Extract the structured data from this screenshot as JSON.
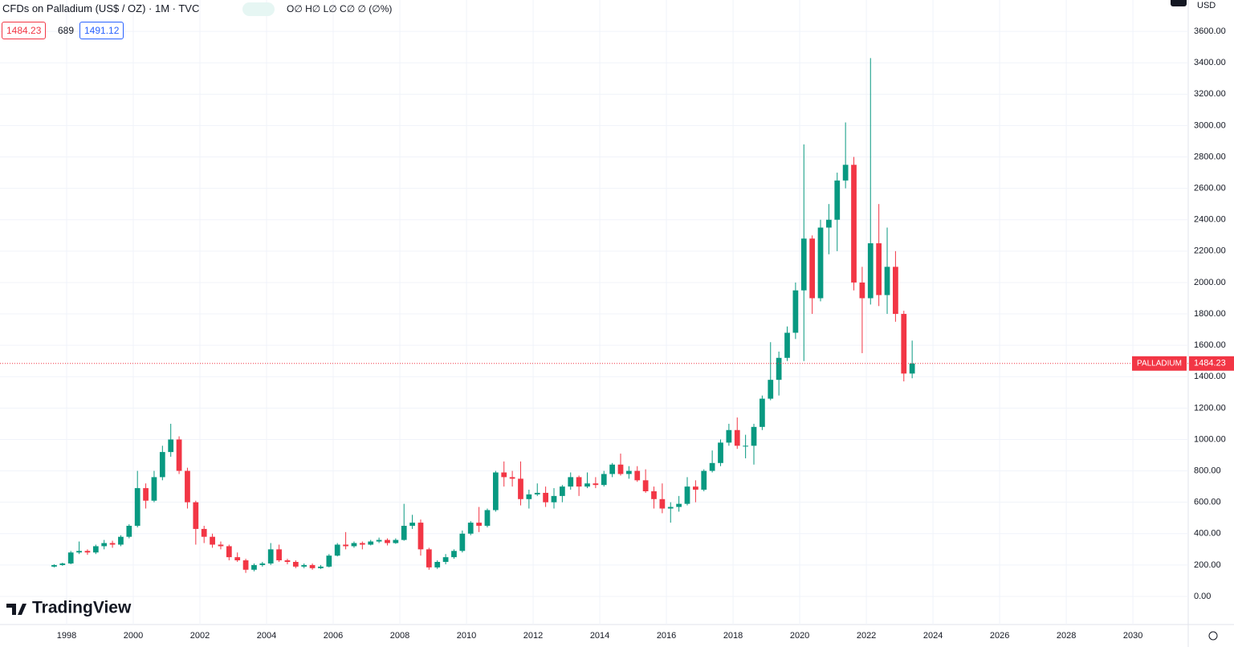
{
  "header": {
    "title": "CFDs on Palladium (US$ / OZ) · 1M · TVC",
    "ohlc": "O∅ H∅ L∅ C∅ ∅ (∅%)",
    "sell": "1484.23",
    "spread": "689",
    "buy": "1491.12",
    "currency": "USD",
    "brand": "TradingView"
  },
  "chart_data": {
    "type": "candlestick",
    "xlim": [
      1996,
      2031.66
    ],
    "xticks": [
      1998,
      2000,
      2002,
      2004,
      2006,
      2008,
      2010,
      2012,
      2014,
      2016,
      2018,
      2020,
      2022,
      2024,
      2026,
      2028,
      2030
    ],
    "ylim": [
      -179,
      3800
    ],
    "yticks": [
      {
        "value": 0,
        "label": "0.00"
      },
      {
        "value": 200,
        "label": "200.00"
      },
      {
        "value": 400,
        "label": "400.00"
      },
      {
        "value": 600,
        "label": "600.00"
      },
      {
        "value": 800,
        "label": "800.00"
      },
      {
        "value": 1000,
        "label": "1000.00"
      },
      {
        "value": 1200,
        "label": "1200.00"
      },
      {
        "value": 1400,
        "label": "1400.00"
      },
      {
        "value": 1600,
        "label": "1600.00"
      },
      {
        "value": 1800,
        "label": "1800.00"
      },
      {
        "value": 2000,
        "label": "2000.00"
      },
      {
        "value": 2200,
        "label": "2200.00"
      },
      {
        "value": 2400,
        "label": "2400.00"
      },
      {
        "value": 2600,
        "label": "2600.00"
      },
      {
        "value": 2800,
        "label": "2800.00"
      },
      {
        "value": 3000,
        "label": "3000.00"
      },
      {
        "value": 3200,
        "label": "3200.00"
      },
      {
        "value": 3400,
        "label": "3400.00"
      },
      {
        "value": 3600,
        "label": "3600.00"
      }
    ],
    "grid": true,
    "x": [
      1997.625,
      1997.875,
      1998.125,
      1998.375,
      1998.625,
      1998.875,
      1999.125,
      1999.375,
      1999.625,
      1999.875,
      2000.125,
      2000.375,
      2000.625,
      2000.875,
      2001.125,
      2001.375,
      2001.625,
      2001.875,
      2002.125,
      2002.375,
      2002.625,
      2002.875,
      2003.125,
      2003.375,
      2003.625,
      2003.875,
      2004.125,
      2004.375,
      2004.625,
      2004.875,
      2005.125,
      2005.375,
      2005.625,
      2005.875,
      2006.125,
      2006.375,
      2006.625,
      2006.875,
      2007.125,
      2007.375,
      2007.625,
      2007.875,
      2008.125,
      2008.375,
      2008.625,
      2008.875,
      2009.125,
      2009.375,
      2009.625,
      2009.875,
      2010.125,
      2010.375,
      2010.625,
      2010.875,
      2011.125,
      2011.375,
      2011.625,
      2011.875,
      2012.125,
      2012.375,
      2012.625,
      2012.875,
      2013.125,
      2013.375,
      2013.625,
      2013.875,
      2014.125,
      2014.375,
      2014.625,
      2014.875,
      2015.125,
      2015.375,
      2015.625,
      2015.875,
      2016.125,
      2016.375,
      2016.625,
      2016.875,
      2017.125,
      2017.375,
      2017.625,
      2017.875,
      2018.125,
      2018.375,
      2018.625,
      2018.875,
      2019.125,
      2019.375,
      2019.625,
      2019.875,
      2020.125,
      2020.375,
      2020.625,
      2020.875,
      2021.125,
      2021.375,
      2021.625,
      2021.875,
      2022.125,
      2022.375,
      2022.625,
      2022.875,
      2023.125,
      2023.375
    ],
    "series": [
      {
        "name": "PALLADIUM",
        "color_up": "#089981",
        "color_down": "#f23645",
        "open": [
          190,
          200,
          210,
          280,
          290,
          280,
          320,
          340,
          330,
          380,
          450,
          690,
          610,
          760,
          920,
          1000,
          800,
          600,
          430,
          380,
          330,
          320,
          250,
          230,
          170,
          200,
          210,
          300,
          230,
          220,
          190,
          200,
          180,
          190,
          260,
          330,
          320,
          340,
          330,
          350,
          360,
          340,
          360,
          450,
          470,
          300,
          185,
          220,
          250,
          290,
          400,
          470,
          450,
          550,
          790,
          760,
          750,
          620,
          650,
          660,
          600,
          640,
          700,
          760,
          700,
          720,
          710,
          780,
          840,
          780,
          800,
          740,
          670,
          620,
          560,
          570,
          590,
          700,
          680,
          800,
          850,
          980,
          1060,
          960,
          960,
          1080,
          1260,
          1380,
          1520,
          1680,
          1950,
          2280,
          1900,
          2350,
          2400,
          2650,
          2750,
          2000,
          1900,
          2250,
          1920,
          2100,
          1800,
          1420
        ],
        "high": [
          205,
          215,
          290,
          350,
          300,
          330,
          360,
          355,
          390,
          460,
          800,
          720,
          800,
          960,
          1100,
          1020,
          820,
          610,
          450,
          400,
          350,
          330,
          280,
          240,
          210,
          220,
          340,
          330,
          240,
          230,
          210,
          210,
          200,
          270,
          340,
          410,
          350,
          350,
          360,
          375,
          370,
          370,
          590,
          520,
          490,
          310,
          230,
          270,
          300,
          420,
          480,
          570,
          560,
          800,
          860,
          800,
          860,
          680,
          720,
          700,
          690,
          710,
          790,
          770,
          790,
          760,
          800,
          850,
          910,
          830,
          830,
          810,
          700,
          720,
          600,
          640,
          760,
          740,
          810,
          930,
          1000,
          1100,
          1140,
          1030,
          1100,
          1280,
          1620,
          1560,
          1720,
          2000,
          2880,
          2300,
          2400,
          2500,
          2700,
          3020,
          2800,
          2100,
          3430,
          2500,
          2350,
          2200,
          1820,
          1630
        ],
        "low": [
          185,
          195,
          205,
          270,
          265,
          270,
          300,
          310,
          320,
          370,
          440,
          560,
          600,
          740,
          890,
          780,
          560,
          330,
          340,
          310,
          300,
          230,
          220,
          150,
          160,
          190,
          200,
          220,
          205,
          180,
          180,
          170,
          175,
          185,
          255,
          300,
          310,
          300,
          325,
          340,
          325,
          335,
          355,
          430,
          260,
          170,
          175,
          205,
          240,
          280,
          390,
          410,
          440,
          540,
          700,
          700,
          580,
          560,
          640,
          570,
          560,
          600,
          680,
          640,
          690,
          690,
          700,
          760,
          770,
          750,
          730,
          660,
          560,
          530,
          470,
          540,
          580,
          600,
          670,
          790,
          830,
          960,
          940,
          880,
          840,
          1060,
          1250,
          1280,
          1500,
          1640,
          1500,
          1800,
          1880,
          2180,
          2200,
          2600,
          1950,
          1550,
          1860,
          1850,
          1800,
          1750,
          1370,
          1390
        ],
        "close": [
          200,
          210,
          280,
          290,
          280,
          320,
          340,
          330,
          380,
          450,
          690,
          610,
          760,
          920,
          1000,
          800,
          600,
          430,
          380,
          330,
          320,
          250,
          230,
          170,
          200,
          210,
          300,
          230,
          220,
          190,
          200,
          180,
          190,
          260,
          330,
          320,
          340,
          330,
          350,
          360,
          340,
          360,
          450,
          470,
          300,
          185,
          220,
          250,
          290,
          400,
          470,
          450,
          550,
          790,
          760,
          750,
          620,
          650,
          660,
          600,
          640,
          700,
          760,
          700,
          720,
          710,
          780,
          840,
          780,
          800,
          740,
          670,
          620,
          560,
          570,
          590,
          700,
          680,
          800,
          850,
          980,
          1060,
          960,
          960,
          1080,
          1260,
          1380,
          1520,
          1680,
          1950,
          2280,
          1900,
          2350,
          2400,
          2650,
          2750,
          2000,
          1900,
          2250,
          1920,
          2100,
          1800,
          1420,
          1484.23
        ]
      }
    ]
  }
}
